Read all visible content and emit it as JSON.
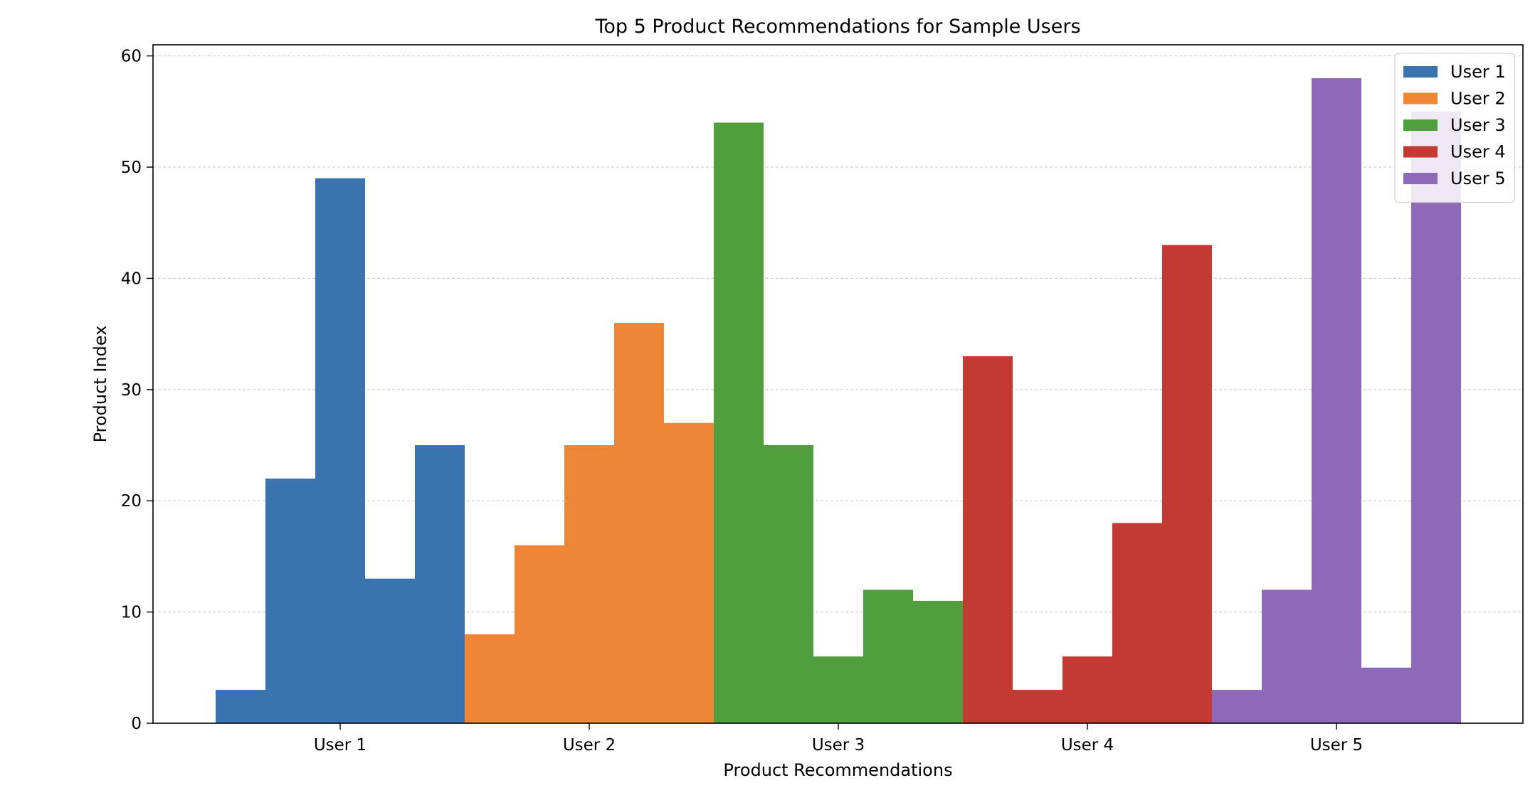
{
  "chart_data": {
    "type": "bar",
    "title": "Top 5 Product Recommendations for Sample Users",
    "xlabel": "Product Recommendations",
    "ylabel": "Product Index",
    "categories": [
      "User 1",
      "User 2",
      "User 3",
      "User 4",
      "User 5"
    ],
    "ylim": [
      0,
      61
    ],
    "yticks": [
      0,
      10,
      20,
      30,
      40,
      50,
      60
    ],
    "grid": "y-dashed",
    "legend_position": "top-right",
    "series": [
      {
        "name": "User 1",
        "color": "#3a74b0",
        "values": [
          3,
          22,
          49,
          13,
          25
        ]
      },
      {
        "name": "User 2",
        "color": "#ee8636",
        "values": [
          8,
          16,
          25,
          36,
          27
        ]
      },
      {
        "name": "User 3",
        "color": "#519e3e",
        "values": [
          54,
          25,
          6,
          12,
          11
        ]
      },
      {
        "name": "User 4",
        "color": "#c43932",
        "values": [
          33,
          3,
          6,
          18,
          43
        ]
      },
      {
        "name": "User 5",
        "color": "#8d69b8",
        "values": [
          3,
          12,
          58,
          5,
          55
        ]
      }
    ]
  }
}
